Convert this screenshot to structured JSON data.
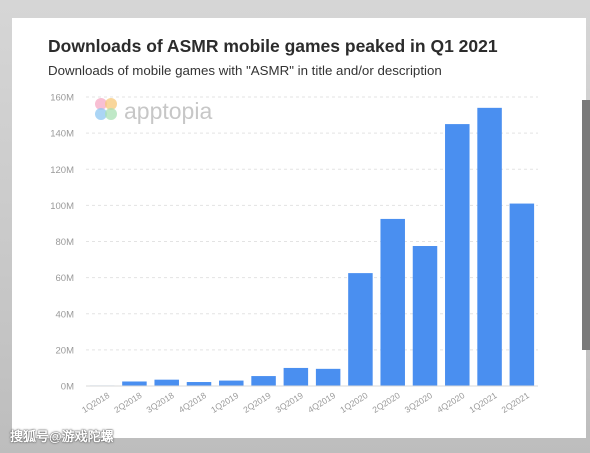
{
  "chart_data": {
    "type": "bar",
    "title": "Downloads of ASMR mobile games peaked in Q1 2021",
    "subtitle": "Downloads of mobile games with \"ASMR\" in title and/or description",
    "xlabel": "",
    "ylabel": "",
    "ylim": [
      0,
      160
    ],
    "y_ticks": [
      "0M",
      "20M",
      "40M",
      "60M",
      "80M",
      "100M",
      "120M",
      "140M",
      "160M"
    ],
    "y_tick_values": [
      0,
      20,
      40,
      60,
      80,
      100,
      120,
      140,
      160
    ],
    "grid": true,
    "bar_color": "#4a8ff0",
    "categories": [
      "1Q2018",
      "2Q2018",
      "3Q2018",
      "4Q2018",
      "1Q2019",
      "2Q2019",
      "3Q2019",
      "4Q2019",
      "1Q2020",
      "2Q2020",
      "3Q2020",
      "4Q2020",
      "1Q2021",
      "2Q2021"
    ],
    "values": [
      0.3,
      2.5,
      3.5,
      2.2,
      3.0,
      5.5,
      10.0,
      9.5,
      62.5,
      92.5,
      77.5,
      145.0,
      154.0,
      101.0
    ]
  },
  "brand": {
    "name": "apptopia",
    "icon": "apptopia-flower-logo"
  },
  "watermark": {
    "text": "搜狐号@游戏陀螺"
  }
}
